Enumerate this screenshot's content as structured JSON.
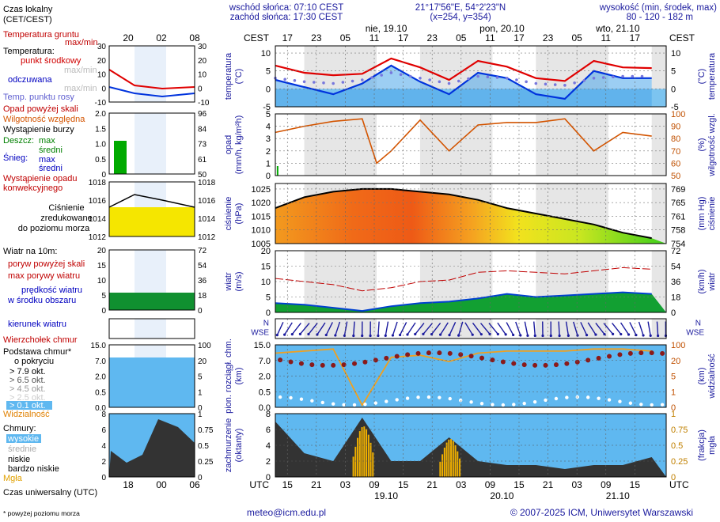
{
  "header": {
    "sunrise": "wschód słońca: 07:10 CEST",
    "sunset": "zachód słońca: 17:30 CEST",
    "coords": "21°17'56\"E, 54°2'23\"N",
    "grid": "(x=254, y=354)",
    "height_label": "wysokość (min, środek, max)",
    "height_values": "80 - 120 - 182 m"
  },
  "time_axis": {
    "cest_label": "CEST",
    "utc_label": "UTC",
    "cest_hours": [
      "17",
      "23",
      "05",
      "11",
      "17",
      "23",
      "05",
      "11",
      "17",
      "23",
      "05",
      "11",
      "17"
    ],
    "utc_hours": [
      "15",
      "21",
      "03",
      "09",
      "15",
      "21",
      "03",
      "09",
      "15",
      "21",
      "03",
      "09",
      "15"
    ],
    "days_top": [
      "nie, 19.10",
      "pon, 20.10",
      "wto, 21.10"
    ],
    "days_bottom": [
      "19.10",
      "20.10",
      "21.10"
    ]
  },
  "legend": {
    "time_local": "Czas lokalny",
    "time_local_sub": "(CET/CEST)",
    "ground_temp": "Temperatura gruntu",
    "ground_temp_sub": "max/min",
    "temperature": "Temperatura:",
    "mid_point": "punkt środkowy",
    "maxmin1": "max/min",
    "perceived": "odczuwana",
    "maxmin2": "max/min",
    "dew_point": "Temp. punktu rosy",
    "precip_above": "Opad powyżej skali",
    "humidity": "Wilgotność względna",
    "storm": "Wystąpienie burzy",
    "rain": "Deszcz:",
    "rain_max": "max",
    "rain_mid": "średni",
    "snow": "Śnieg:",
    "snow_max": "max",
    "snow_mid": "średni",
    "precip_conv1": "Wystąpienie opadu",
    "precip_conv2": "konwekcyjnego",
    "pressure1": "Ciśnienie",
    "pressure2": "zredukowane",
    "pressure3": "do poziomu morza",
    "wind10": "Wiatr na 10m:",
    "gust_above": "poryw powyżej skali",
    "gust_max": "max porywy wiatru",
    "wind_speed1": "prędkość wiatru",
    "wind_speed2": "w środku obszaru",
    "wind_dir": "kierunek wiatru",
    "cloud_top": "Wierzchołek chmur",
    "cloud_base1": "Podstawa chmur*",
    "cloud_base2": "o pokryciu",
    "okt79": "> 7.9 okt.",
    "okt65": "> 6.5 okt.",
    "okt45": "> 4.5 okt.",
    "okt25": "> 2.5 okt.",
    "okt01": "> 0.1 okt.",
    "visibility": "Widzialność",
    "clouds": "Chmury:",
    "high": "wysokie",
    "mid": "średnie",
    "low": "niskie",
    "very_low": "bardzo niskie",
    "fog": "Mgła",
    "time_utc": "Czas uniwersalny (UTC)",
    "footnote": "* powyżej poziomu morza",
    "mini_top_ticks": [
      "20",
      "02",
      "08"
    ],
    "mini_bottom_ticks": [
      "18",
      "00",
      "06"
    ]
  },
  "panels": {
    "temp": {
      "left": [
        "temperatura",
        "(°C)"
      ],
      "right": [
        "(°C)",
        "temperatura"
      ],
      "ticks": [
        "10",
        "5",
        "0",
        "-5"
      ],
      "mini_ticks": [
        "30",
        "20",
        "10",
        "0",
        "-10"
      ]
    },
    "precip": {
      "left": [
        "opad",
        "(mm/h, kg/m²h)"
      ],
      "right": [
        "(%)",
        "wilgotność wzgl."
      ],
      "ticks": [
        "5",
        "4",
        "3",
        "2",
        "1",
        "0"
      ],
      "rticks": [
        "100",
        "90",
        "80",
        "70",
        "60",
        "50"
      ],
      "mini_ticks": [
        "2.0",
        "1.5",
        "1.0",
        "0.5",
        "0"
      ],
      "mini_rticks": [
        "96",
        "84",
        "73",
        "61",
        "50"
      ]
    },
    "press": {
      "left": [
        "ciśnienie",
        "(hPa)"
      ],
      "right": [
        "(mm Hg)",
        "ciśnienie"
      ],
      "ticks": [
        "1025",
        "1020",
        "1015",
        "1010",
        "1005"
      ],
      "rticks": [
        "769",
        "765",
        "761",
        "758",
        "754"
      ],
      "mini_ticks": [
        "1018",
        "1016",
        "1014",
        "1012"
      ]
    },
    "wind": {
      "left": [
        "wiatr",
        "(m/s)"
      ],
      "right": [
        "(km/h)",
        "wiatr"
      ],
      "ticks": [
        "20",
        "15",
        "10",
        "5",
        "0"
      ],
      "rticks": [
        "72",
        "54",
        "36",
        "18",
        "0"
      ],
      "mini_ticks": [
        "20",
        "15",
        "10",
        "5",
        "0"
      ],
      "mini_rticks": [
        "72",
        "54",
        "36",
        "18",
        "0"
      ]
    },
    "cloud": {
      "left": [
        "pion. rozciągł. chm.",
        "(km)"
      ],
      "right": [
        "(km)",
        "widzialność"
      ],
      "ticks": [
        "15.0",
        "7.0",
        "2.0",
        "0.5",
        "0.0"
      ],
      "rticks": [
        "100",
        "20",
        "5",
        "1",
        "0"
      ]
    },
    "cover": {
      "left": [
        "zachmurzenie",
        "(oktanty)"
      ],
      "right": [
        "(frakcja)",
        "mgła"
      ],
      "ticks": [
        "8",
        "6",
        "4",
        "2",
        "0"
      ],
      "rticks": [
        "1",
        "0.75",
        "0.5",
        "0.25",
        "0"
      ]
    }
  },
  "footer": {
    "email": "meteo@icm.edu.pl",
    "copyright": "© 2007-2025 ICM, Uniwersytet Warszawski"
  },
  "chart_data": [
    {
      "type": "line",
      "title": "",
      "ylabel": "temperatura (°C)",
      "ylim": [
        -5,
        12
      ],
      "x": [
        0,
        6,
        12,
        18,
        24,
        30,
        36,
        42,
        48,
        54,
        60,
        66,
        72,
        78
      ],
      "series": [
        {
          "name": "punkt środkowy",
          "values": [
            6.5,
            4.5,
            3.8,
            4.2,
            8.5,
            6.0,
            2.5,
            7.8,
            6.2,
            3.0,
            2.2,
            7.8,
            6.0,
            5.8
          ]
        },
        {
          "name": "odczuwana",
          "values": [
            2.5,
            0.5,
            -1.5,
            1.5,
            6.5,
            2.0,
            -1.5,
            4.5,
            3.0,
            -1.5,
            -2.8,
            5.0,
            3.0,
            3.0
          ]
        },
        {
          "name": "Temp. punktu rosy",
          "values": [
            3,
            2,
            1.5,
            2.5,
            4.5,
            3,
            1.5,
            3.5,
            3,
            1.5,
            1,
            3,
            3.5,
            3.5
          ]
        }
      ]
    },
    {
      "type": "line",
      "title": "",
      "ylabel": "opad (mm/h, kg/m²h)",
      "ylim": [
        0,
        5
      ],
      "x": [
        0,
        6,
        12,
        18,
        21,
        24,
        30,
        36,
        42,
        48,
        54,
        60,
        66,
        72,
        78
      ],
      "series": [
        {
          "name": "Wilgotność względna",
          "values": [
            85,
            90,
            94,
            96,
            60,
            70,
            95,
            70,
            91,
            93,
            93,
            96,
            70,
            85,
            82
          ]
        }
      ]
    },
    {
      "type": "area",
      "title": "",
      "ylabel": "ciśnienie (hPa)",
      "ylim": [
        1005,
        1027
      ],
      "x": [
        0,
        6,
        12,
        18,
        24,
        30,
        36,
        42,
        48,
        54,
        60,
        66,
        72,
        78
      ],
      "series": [
        {
          "name": "Ciśnienie",
          "values": [
            1018,
            1022,
            1024,
            1025,
            1025,
            1024,
            1023,
            1021,
            1018,
            1016,
            1014,
            1012,
            1009,
            1007
          ]
        }
      ]
    },
    {
      "type": "area",
      "title": "",
      "ylabel": "wiatr (m/s)",
      "ylim": [
        0,
        20
      ],
      "x": [
        0,
        6,
        12,
        18,
        24,
        30,
        36,
        42,
        48,
        54,
        60,
        66,
        72,
        78
      ],
      "series": [
        {
          "name": "prędkość wiatru",
          "values": [
            3,
            2.5,
            1.5,
            0.5,
            2,
            3,
            3.5,
            4.5,
            6,
            5,
            5.5,
            6,
            6.5,
            6
          ]
        },
        {
          "name": "max porywy wiatru",
          "values": [
            11,
            10,
            9,
            7,
            8,
            10,
            10.5,
            13,
            13.5,
            13,
            12.5,
            13.5,
            14.5,
            14
          ]
        }
      ]
    },
    {
      "type": "line",
      "title": "",
      "ylabel": "pion. rozciągł. chm. (km)",
      "ylim": [
        0,
        15
      ],
      "x": [
        0,
        6,
        12,
        18,
        24,
        30,
        36,
        42,
        48,
        54,
        60,
        66,
        72,
        78
      ],
      "series": [
        {
          "name": "Widzialność",
          "values": [
            26,
            27,
            28,
            1,
            24,
            25,
            22,
            26,
            27,
            27,
            27,
            28,
            28,
            27
          ]
        }
      ]
    },
    {
      "type": "area",
      "title": "",
      "ylabel": "zachmurzenie (oktanty)",
      "ylim": [
        0,
        8
      ],
      "x": [
        0,
        6,
        12,
        18,
        24,
        30,
        36,
        42,
        48,
        54,
        60,
        66,
        72,
        78
      ],
      "series": [
        {
          "name": "niskie",
          "values": [
            7,
            3,
            2,
            7.5,
            2,
            2,
            5,
            2,
            1.5,
            1.5,
            1,
            1.5,
            1.5,
            2.5
          ]
        },
        {
          "name": "Mgła",
          "values": [
            0,
            0,
            0,
            0.8,
            0,
            0,
            0.6,
            0,
            0,
            0,
            0,
            0,
            0,
            0
          ]
        }
      ]
    }
  ]
}
